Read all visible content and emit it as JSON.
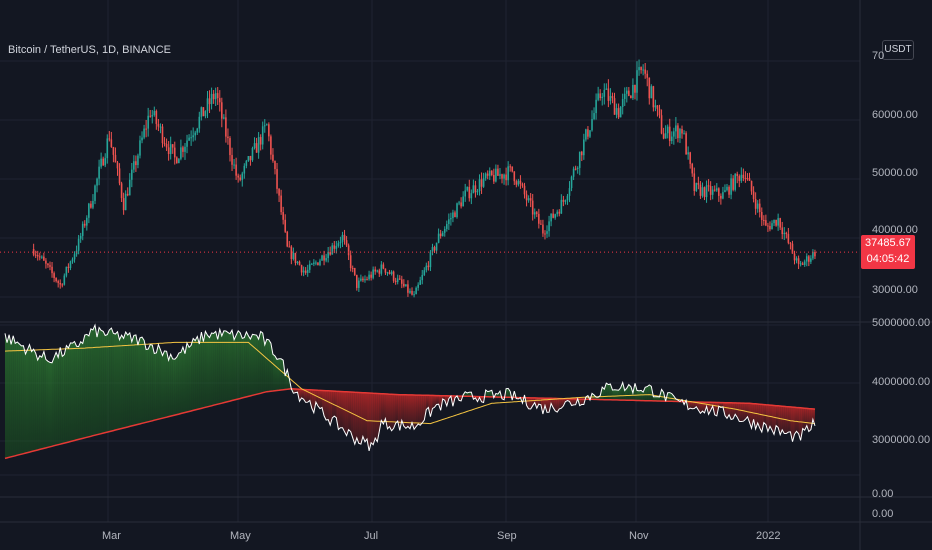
{
  "symbol": {
    "title": "Bitcoin / TetherUS, 1D, BINANCE"
  },
  "currency_button": {
    "label": "USDT"
  },
  "last_price": {
    "value": "37485.67",
    "countdown": "04:05:42",
    "color": "#f23645"
  },
  "price_axis": {
    "labels": [
      "70",
      "60000.00",
      "50000.00",
      "40000.00",
      "30000.00"
    ]
  },
  "indicator_axis": {
    "labels": [
      "5000000.00",
      "4000000.00",
      "3000000.00",
      "0.00",
      "0.00"
    ]
  },
  "time_axis": {
    "labels": [
      "Mar",
      "May",
      "Jul",
      "Sep",
      "Nov",
      "2022"
    ]
  },
  "colors": {
    "background": "#131722",
    "up": "#26a69a",
    "down": "#ef5350",
    "grid": "#1f2331",
    "indicator_line": "#ffffff",
    "fast_ma": "#f5c542",
    "slow_ma": "#e53935",
    "fill_bull": "#2e7d32",
    "fill_bear": "#b71c1c"
  },
  "chart_data": {
    "type": "candlestick",
    "interval": "1D",
    "y_range": [
      28000,
      70000
    ],
    "price_path": [
      {
        "x": "2021-01-15",
        "y": 38000
      },
      {
        "x": "2021-01-28",
        "y": 32000
      },
      {
        "x": "2021-02-06",
        "y": 39000
      },
      {
        "x": "2021-02-13",
        "y": 47000
      },
      {
        "x": "2021-02-21",
        "y": 57000
      },
      {
        "x": "2021-02-28",
        "y": 45500
      },
      {
        "x": "2021-03-13",
        "y": 61000
      },
      {
        "x": "2021-03-25",
        "y": 53000
      },
      {
        "x": "2021-04-14",
        "y": 64000
      },
      {
        "x": "2021-04-25",
        "y": 49000
      },
      {
        "x": "2021-05-09",
        "y": 58500
      },
      {
        "x": "2021-05-19",
        "y": 38000
      },
      {
        "x": "2021-05-28",
        "y": 34000
      },
      {
        "x": "2021-06-15",
        "y": 40000
      },
      {
        "x": "2021-06-22",
        "y": 32000
      },
      {
        "x": "2021-07-05",
        "y": 35000
      },
      {
        "x": "2021-07-20",
        "y": 30000
      },
      {
        "x": "2021-08-01",
        "y": 40000
      },
      {
        "x": "2021-08-14",
        "y": 47000
      },
      {
        "x": "2021-08-23",
        "y": 49500
      },
      {
        "x": "2021-09-06",
        "y": 51000
      },
      {
        "x": "2021-09-21",
        "y": 41000
      },
      {
        "x": "2021-10-01",
        "y": 46000
      },
      {
        "x": "2021-10-20",
        "y": 64500
      },
      {
        "x": "2021-10-28",
        "y": 61000
      },
      {
        "x": "2021-11-09",
        "y": 68000
      },
      {
        "x": "2021-11-19",
        "y": 57000
      },
      {
        "x": "2021-11-28",
        "y": 58000
      },
      {
        "x": "2021-12-04",
        "y": 48000
      },
      {
        "x": "2021-12-18",
        "y": 47000
      },
      {
        "x": "2021-12-28",
        "y": 51000
      },
      {
        "x": "2022-01-08",
        "y": 41500
      },
      {
        "x": "2022-01-14",
        "y": 43000
      },
      {
        "x": "2022-01-24",
        "y": 35000
      },
      {
        "x": "2022-02-01",
        "y": 37485.67
      }
    ],
    "indicator": {
      "y_range": [
        2500000,
        5200000
      ],
      "series": [
        {
          "path": [
            {
              "x": "2021-01-01",
              "y": 4800000
            },
            {
              "x": "2021-01-22",
              "y": 4400000
            },
            {
              "x": "2021-02-05",
              "y": 4650000
            },
            {
              "x": "2021-02-13",
              "y": 4900000
            },
            {
              "x": "2021-03-07",
              "y": 4750000
            },
            {
              "x": "2021-03-25",
              "y": 4450000
            },
            {
              "x": "2021-04-10",
              "y": 4850000
            },
            {
              "x": "2021-05-06",
              "y": 4800000
            },
            {
              "x": "2021-05-15",
              "y": 4450000
            },
            {
              "x": "2021-05-23",
              "y": 3850000
            },
            {
              "x": "2021-06-08",
              "y": 3400000
            },
            {
              "x": "2021-06-21",
              "y": 3050000
            },
            {
              "x": "2021-06-30",
              "y": 2900000
            },
            {
              "x": "2021-07-04",
              "y": 3300000
            },
            {
              "x": "2021-07-20",
              "y": 3250000
            },
            {
              "x": "2021-07-31",
              "y": 3600000
            },
            {
              "x": "2021-08-14",
              "y": 3750000
            },
            {
              "x": "2021-09-04",
              "y": 3800000
            },
            {
              "x": "2021-09-22",
              "y": 3550000
            },
            {
              "x": "2021-10-09",
              "y": 3700000
            },
            {
              "x": "2021-10-25",
              "y": 3950000
            },
            {
              "x": "2021-11-12",
              "y": 3900000
            },
            {
              "x": "2021-11-27",
              "y": 3650000
            },
            {
              "x": "2021-12-22",
              "y": 3450000
            },
            {
              "x": "2022-01-11",
              "y": 3200000
            },
            {
              "x": "2022-01-24",
              "y": 3050000
            },
            {
              "x": "2022-02-01",
              "y": 3300000
            }
          ]
        },
        {
          "path": [
            {
              "x": "2021-01-01",
              "y": 4550000
            },
            {
              "x": "2021-02-08",
              "y": 4600000
            },
            {
              "x": "2021-03-25",
              "y": 4700000
            },
            {
              "x": "2021-04-30",
              "y": 4700000
            },
            {
              "x": "2021-05-26",
              "y": 3900000
            },
            {
              "x": "2021-06-27",
              "y": 3350000
            },
            {
              "x": "2021-07-28",
              "y": 3300000
            },
            {
              "x": "2021-08-27",
              "y": 3650000
            },
            {
              "x": "2021-10-09",
              "y": 3750000
            },
            {
              "x": "2021-11-12",
              "y": 3800000
            },
            {
              "x": "2021-12-24",
              "y": 3550000
            },
            {
              "x": "2022-01-20",
              "y": 3350000
            },
            {
              "x": "2022-02-01",
              "y": 3300000
            }
          ]
        },
        {
          "path": [
            {
              "x": "2021-01-01",
              "y": 2700000
            },
            {
              "x": "2021-02-14",
              "y": 3100000
            },
            {
              "x": "2021-03-31",
              "y": 3500000
            },
            {
              "x": "2021-05-09",
              "y": 3850000
            },
            {
              "x": "2021-05-21",
              "y": 3900000
            },
            {
              "x": "2021-07-12",
              "y": 3800000
            },
            {
              "x": "2021-09-08",
              "y": 3750000
            },
            {
              "x": "2021-11-05",
              "y": 3700000
            },
            {
              "x": "2021-12-31",
              "y": 3650000
            },
            {
              "x": "2022-02-01",
              "y": 3550000
            }
          ]
        }
      ]
    }
  }
}
